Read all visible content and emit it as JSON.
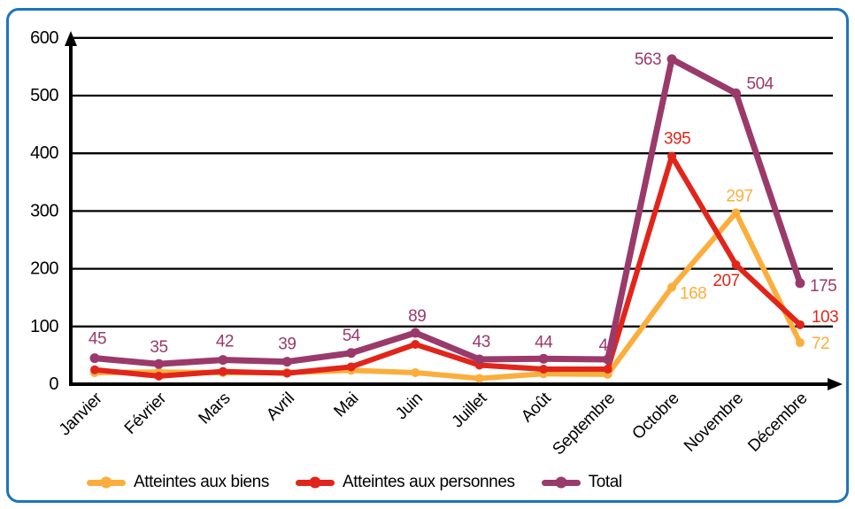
{
  "frame": {
    "border_color": "#1C75BC",
    "background": "#FFFFFF"
  },
  "chart_data": {
    "type": "line",
    "title": "",
    "xlabel": "",
    "ylabel": "",
    "ylim": [
      0,
      600
    ],
    "ytick_step": 100,
    "yticks": [
      "0",
      "100",
      "200",
      "300",
      "400",
      "500",
      "600"
    ],
    "grid": true,
    "legend_position": "bottom",
    "axis_color": "#000000",
    "text_color": "#000000",
    "categories": [
      "Janvier",
      "Février",
      "Mars",
      "Avril",
      "Mai",
      "Juin",
      "Juillet",
      "Août",
      "Septembre",
      "Octobre",
      "Novembre",
      "Décembre"
    ],
    "series": [
      {
        "name": "Atteintes aux biens",
        "color": "#FBAE3C",
        "values": [
          20,
          21,
          20,
          20,
          24,
          20,
          10,
          18,
          17,
          168,
          297,
          72
        ],
        "point_labels": [
          {
            "i": 9,
            "text": "168",
            "dx": 9,
            "dy": 13,
            "anchor": "start"
          },
          {
            "i": 10,
            "text": "297",
            "dx": 4,
            "dy": -13
          },
          {
            "i": 11,
            "text": "72",
            "dx": 13,
            "dy": 7,
            "anchor": "start"
          }
        ]
      },
      {
        "name": "Atteintes aux personnes",
        "color": "#E1251B",
        "values": [
          25,
          14,
          22,
          19,
          30,
          69,
          33,
          26,
          26,
          395,
          207,
          103
        ],
        "point_labels": [
          {
            "i": 9,
            "text": "395",
            "dx": 6,
            "dy": -14
          },
          {
            "i": 10,
            "text": "207",
            "dx": -11,
            "dy": 24
          },
          {
            "i": 11,
            "text": "103",
            "dx": 13,
            "dy": -3,
            "anchor": "start"
          }
        ]
      },
      {
        "name": "Total",
        "color": "#9A3A6B",
        "values": [
          45,
          35,
          42,
          39,
          54,
          89,
          43,
          44,
          43,
          563,
          504,
          175
        ],
        "point_labels": [
          {
            "i": 0,
            "text": "45",
            "dx": 3,
            "dy": -16
          },
          {
            "i": 1,
            "text": "35",
            "dx": 0,
            "dy": -13
          },
          {
            "i": 2,
            "text": "42",
            "dx": 2,
            "dy": -15
          },
          {
            "i": 3,
            "text": "39",
            "dx": 0,
            "dy": -14
          },
          {
            "i": 4,
            "text": "54",
            "dx": 0,
            "dy": -14
          },
          {
            "i": 5,
            "text": "89",
            "dx": 2,
            "dy": -13
          },
          {
            "i": 6,
            "text": "43",
            "dx": 2,
            "dy": -14
          },
          {
            "i": 7,
            "text": "44",
            "dx": 0,
            "dy": -13
          },
          {
            "i": 8,
            "text": "43",
            "dx": 0,
            "dy": -10
          },
          {
            "i": 9,
            "text": "563",
            "dx": -12,
            "dy": 6,
            "anchor": "end"
          },
          {
            "i": 10,
            "text": "504",
            "dx": 12,
            "dy": -5,
            "anchor": "start"
          },
          {
            "i": 11,
            "text": "175",
            "dx": 11,
            "dy": 9,
            "anchor": "start"
          }
        ]
      }
    ]
  }
}
